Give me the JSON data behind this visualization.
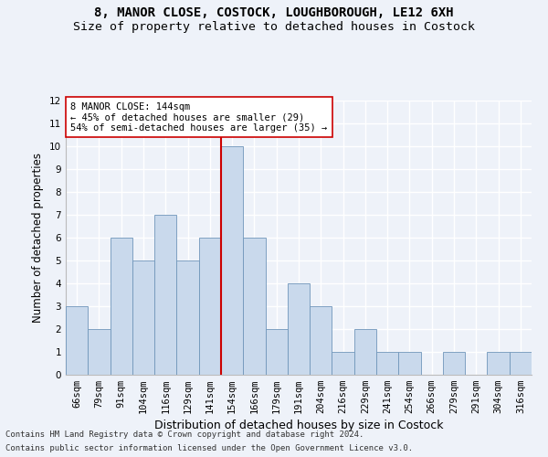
{
  "title1": "8, MANOR CLOSE, COSTOCK, LOUGHBOROUGH, LE12 6XH",
  "title2": "Size of property relative to detached houses in Costock",
  "xlabel": "Distribution of detached houses by size in Costock",
  "ylabel": "Number of detached properties",
  "bar_labels": [
    "66sqm",
    "79sqm",
    "91sqm",
    "104sqm",
    "116sqm",
    "129sqm",
    "141sqm",
    "154sqm",
    "166sqm",
    "179sqm",
    "191sqm",
    "204sqm",
    "216sqm",
    "229sqm",
    "241sqm",
    "254sqm",
    "266sqm",
    "279sqm",
    "291sqm",
    "304sqm",
    "316sqm"
  ],
  "bar_values": [
    3,
    2,
    6,
    5,
    7,
    5,
    6,
    10,
    6,
    2,
    4,
    3,
    1,
    2,
    1,
    1,
    0,
    1,
    0,
    1,
    1
  ],
  "bar_color": "#c9d9ec",
  "bar_edge_color": "#7096ba",
  "vline_color": "#cc0000",
  "vline_pos": 6.5,
  "annotation_text": "8 MANOR CLOSE: 144sqm\n← 45% of detached houses are smaller (29)\n54% of semi-detached houses are larger (35) →",
  "annotation_box_color": "#ffffff",
  "annotation_box_edge_color": "#cc0000",
  "ylim": [
    0,
    12
  ],
  "yticks": [
    0,
    1,
    2,
    3,
    4,
    5,
    6,
    7,
    8,
    9,
    10,
    11,
    12
  ],
  "footnote1": "Contains HM Land Registry data © Crown copyright and database right 2024.",
  "footnote2": "Contains public sector information licensed under the Open Government Licence v3.0.",
  "background_color": "#eef2f9",
  "grid_color": "#ffffff",
  "title1_fontsize": 10,
  "title2_fontsize": 9.5,
  "xlabel_fontsize": 9,
  "ylabel_fontsize": 8.5,
  "tick_fontsize": 7.5,
  "annotation_fontsize": 7.5,
  "footnote_fontsize": 6.5
}
